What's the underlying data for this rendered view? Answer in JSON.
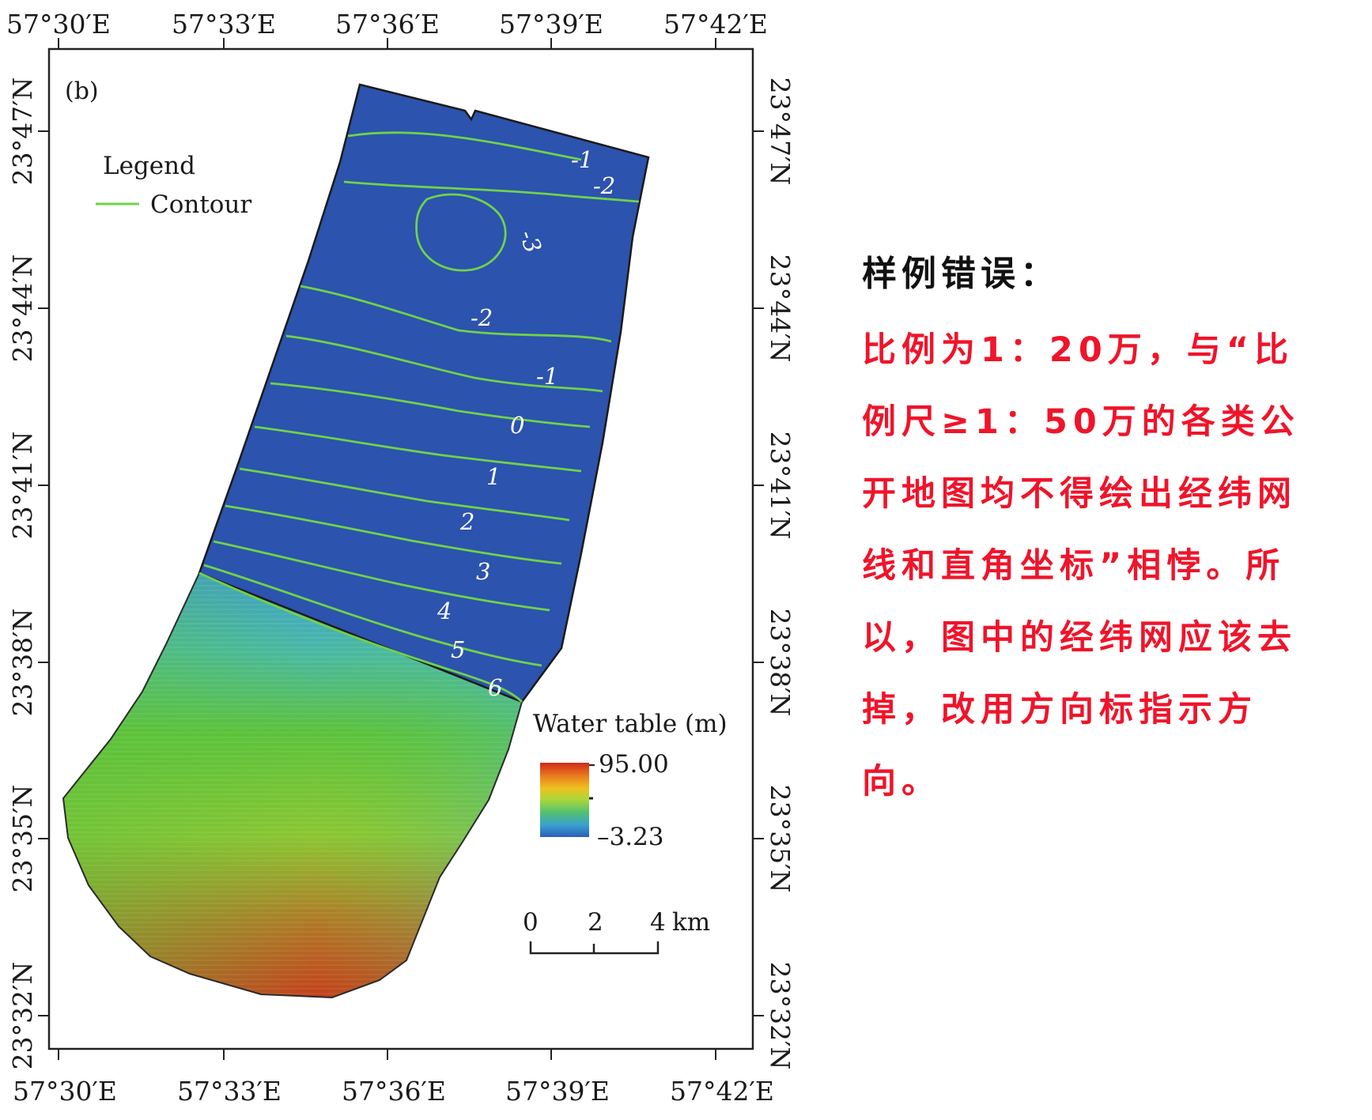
{
  "map": {
    "panel_label": "(b)",
    "top_lon_labels": [
      "57°30′E",
      "57°33′E",
      "57°36′E",
      "57°39′E",
      "57°42′E"
    ],
    "bottom_lon_labels": [
      "57°30′E",
      "57°33′E",
      "57°36′E",
      "57°39′E",
      "57°42′E"
    ],
    "left_lat_labels": [
      "23°47′N",
      "23°44′N",
      "23°41′N",
      "23°38′N",
      "23°35′N",
      "23°32′N"
    ],
    "right_lat_labels": [
      "23°47′N",
      "23°44′N",
      "23°41′N",
      "23°38′N",
      "23°35′N",
      "23°32′N"
    ],
    "legend": {
      "title": "Legend",
      "item_label": "Contour",
      "item_color": "#6fd24a"
    },
    "contour_labels": [
      "-1",
      "-2",
      "-3",
      "-2",
      "-1",
      "0",
      "1",
      "2",
      "3",
      "4",
      "5",
      "6"
    ],
    "water_table": {
      "title": "Water table (m)",
      "max_label": "95.00",
      "min_label": "–3.23",
      "max": 95.0,
      "min": -3.23,
      "ramp_colors": [
        "#2a5fb8",
        "#3aa0d0",
        "#52c070",
        "#a8d83a",
        "#f0c020",
        "#e8781e",
        "#d02818"
      ]
    },
    "scale_bar": {
      "ticks": [
        "0",
        "2",
        "4"
      ],
      "unit": "km"
    },
    "colors": {
      "water_blue": "#2c53ad",
      "contour_green": "#6fd24a",
      "gradient_green": "#5cc035",
      "gradient_red": "#c0521e"
    }
  },
  "note": {
    "title": "样例错误：",
    "lines": [
      "比例为1：20万，与“比",
      "例尺≥1：50万的各类公",
      "开地图均不得绘出经纬网",
      "线和直角坐标”相悖。所",
      "以，图中的经纬网应该去",
      "掉，改用方向标指示方",
      "向。"
    ],
    "color": "#f0142a"
  }
}
